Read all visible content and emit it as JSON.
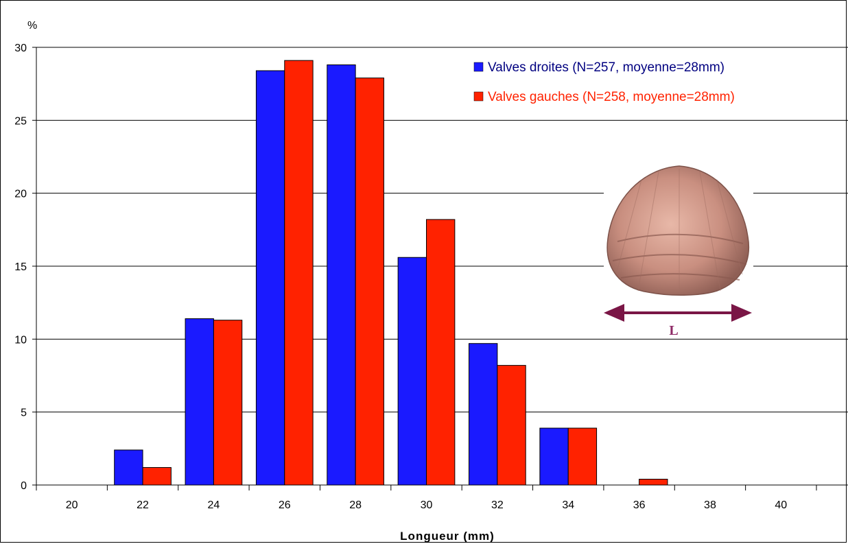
{
  "chart_data": {
    "type": "bar",
    "title": "",
    "ylabel": "%",
    "xlabel": "Longueur (mm)",
    "ylim": [
      0,
      30
    ],
    "yticks": [
      0,
      5,
      10,
      15,
      20,
      25,
      30
    ],
    "categories": [
      "20",
      "22",
      "24",
      "26",
      "28",
      "30",
      "32",
      "34",
      "36",
      "38",
      "40"
    ],
    "series": [
      {
        "name": "Valves droites (N=257, moyenne=28mm)",
        "color": "#1a1aff",
        "text_color": "#000080",
        "values": [
          0,
          2.4,
          11.4,
          28.4,
          28.8,
          15.6,
          9.7,
          3.9,
          0,
          0,
          0
        ]
      },
      {
        "name": "Valves gauches (N=258, moyenne=28mm)",
        "color": "#ff2200",
        "text_color": "#ff2200",
        "values": [
          0,
          1.2,
          11.3,
          29.1,
          27.9,
          18.2,
          8.2,
          3.9,
          0.4,
          0,
          0
        ]
      }
    ],
    "grid": true,
    "legend_position": "top-right"
  },
  "inset": {
    "image": "cockle-shell",
    "arrow_label": "L",
    "arrow_color": "#7a1646"
  }
}
